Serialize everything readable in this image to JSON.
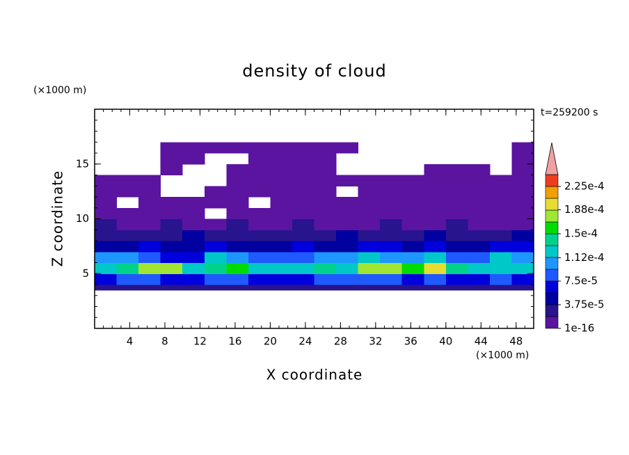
{
  "chart_data": {
    "type": "contour",
    "title": "density of cloud",
    "xlabel": "X coordinate",
    "ylabel": "Z coordinate",
    "x_unit": "(×1000 m)",
    "y_unit": "(×1000 m)",
    "annotation": "t=259200 s",
    "xlim": [
      0,
      50
    ],
    "ylim": [
      0,
      20
    ],
    "xticks": [
      4,
      8,
      12,
      16,
      20,
      24,
      28,
      32,
      36,
      40,
      44,
      48
    ],
    "yticks": [
      5,
      10,
      15
    ],
    "minor_tick_step": 1,
    "xbins": [
      0,
      2.5,
      5,
      7.5,
      10,
      12.5,
      15,
      17.5,
      20,
      22.5,
      25,
      27.5,
      30,
      32.5,
      35,
      37.5,
      40,
      42.5,
      45,
      47.5,
      50
    ],
    "zbins": [
      3.5,
      4,
      5,
      6,
      7,
      8,
      9,
      10,
      11,
      12,
      13,
      14,
      15,
      16,
      17
    ],
    "field": [
      [
        2.5e-05,
        2.5e-05,
        2.5e-05,
        2.5e-05,
        2.5e-05,
        2.5e-05,
        2.5e-05,
        2.5e-05,
        2.5e-05,
        2.5e-05,
        2.5e-05,
        2.5e-05,
        2.5e-05,
        2.5e-05,
        2.5e-05,
        2.5e-05,
        2.5e-05,
        2.5e-05,
        2.5e-05,
        2.5e-05
      ],
      [
        6e-05,
        8e-05,
        8e-05,
        6e-05,
        6e-05,
        8e-05,
        8e-05,
        6e-05,
        6e-05,
        6e-05,
        8e-05,
        8e-05,
        8e-05,
        8e-05,
        6e-05,
        8e-05,
        6e-05,
        6e-05,
        8e-05,
        6e-05
      ],
      [
        0.00012,
        0.00014,
        0.00018,
        0.00018,
        0.00012,
        0.00014,
        0.00016,
        0.00012,
        0.00012,
        0.00012,
        0.00014,
        0.00012,
        0.00018,
        0.00018,
        0.00016,
        0.00019,
        0.00014,
        0.00012,
        0.00012,
        0.00012
      ],
      [
        9.5e-05,
        9.5e-05,
        8e-05,
        6e-05,
        6e-05,
        0.00012,
        9.5e-05,
        8e-05,
        8e-05,
        8e-05,
        9.5e-05,
        9.5e-05,
        0.00012,
        9.5e-05,
        9.5e-05,
        0.00012,
        8e-05,
        8e-05,
        0.00012,
        9.5e-05
      ],
      [
        4.5e-05,
        4.5e-05,
        6e-05,
        4.5e-05,
        4.5e-05,
        6e-05,
        4.5e-05,
        4.5e-05,
        4.5e-05,
        6e-05,
        4.5e-05,
        4.5e-05,
        6e-05,
        6e-05,
        4.5e-05,
        6e-05,
        4.5e-05,
        4.5e-05,
        6e-05,
        6e-05
      ],
      [
        2.5e-05,
        2.5e-05,
        2.5e-05,
        2.5e-05,
        4.5e-05,
        2.5e-05,
        2.5e-05,
        2.5e-05,
        2.5e-05,
        2.5e-05,
        2.5e-05,
        4.5e-05,
        2.5e-05,
        2.5e-05,
        2.5e-05,
        4.5e-05,
        2.5e-05,
        2.5e-05,
        2.5e-05,
        4.5e-05
      ],
      [
        2.5e-05,
        1e-05,
        1e-05,
        2.5e-05,
        1e-05,
        1e-05,
        2.5e-05,
        1e-05,
        1e-05,
        2.5e-05,
        1e-05,
        1e-05,
        1e-05,
        2.5e-05,
        1e-05,
        1e-05,
        2.5e-05,
        1e-05,
        1e-05,
        1e-05
      ],
      [
        1e-05,
        1e-05,
        1e-05,
        1e-05,
        1e-05,
        null,
        1e-05,
        1e-05,
        1e-05,
        1e-05,
        1e-05,
        1e-05,
        1e-05,
        1e-05,
        1e-05,
        1e-05,
        1e-05,
        1e-05,
        1e-05,
        1e-05
      ],
      [
        1e-05,
        null,
        1e-05,
        1e-05,
        1e-05,
        1e-05,
        1e-05,
        null,
        1e-05,
        1e-05,
        1e-05,
        1e-05,
        1e-05,
        1e-05,
        1e-05,
        1e-05,
        1e-05,
        1e-05,
        1e-05,
        1e-05
      ],
      [
        1e-05,
        1e-05,
        1e-05,
        null,
        null,
        1e-05,
        1e-05,
        1e-05,
        1e-05,
        1e-05,
        1e-05,
        null,
        1e-05,
        1e-05,
        1e-05,
        1e-05,
        1e-05,
        1e-05,
        1e-05,
        1e-05
      ],
      [
        1e-05,
        1e-05,
        1e-05,
        null,
        null,
        null,
        1e-05,
        1e-05,
        1e-05,
        1e-05,
        1e-05,
        1e-05,
        1e-05,
        1e-05,
        1e-05,
        1e-05,
        1e-05,
        1e-05,
        1e-05,
        1e-05
      ],
      [
        null,
        null,
        null,
        1e-05,
        null,
        null,
        1e-05,
        1e-05,
        1e-05,
        1e-05,
        1e-05,
        null,
        null,
        null,
        null,
        1e-05,
        1e-05,
        1e-05,
        null,
        1e-05
      ],
      [
        null,
        null,
        null,
        1e-05,
        1e-05,
        null,
        null,
        1e-05,
        1e-05,
        1e-05,
        1e-05,
        null,
        null,
        null,
        null,
        null,
        null,
        null,
        null,
        1e-05
      ],
      [
        null,
        null,
        null,
        1e-05,
        1e-05,
        1e-05,
        1e-05,
        1e-05,
        1e-05,
        1e-05,
        1e-05,
        1e-05,
        null,
        null,
        null,
        null,
        null,
        null,
        null,
        1e-05
      ]
    ],
    "colorbar": {
      "clim": [
        1e-16,
        0.00024375
      ],
      "colors": [
        "#5a14a0",
        "#28148c",
        "#0000a0",
        "#0000dc",
        "#1e5aff",
        "#1e96ff",
        "#00c8c8",
        "#00d28c",
        "#00dc00",
        "#a0e632",
        "#e6dc32",
        "#f0a000",
        "#f03c1e"
      ],
      "extend_color": "#f0a0a0",
      "ticks": [
        {
          "value": 1e-16,
          "label": "1e-16"
        },
        {
          "value": 3.75e-05,
          "label": "3.75e-5"
        },
        {
          "value": 7.5e-05,
          "label": "7.5e-5"
        },
        {
          "value": 0.000112,
          "label": "1.12e-4"
        },
        {
          "value": 0.00015,
          "label": "1.5e-4"
        },
        {
          "value": 0.000188,
          "label": "1.88e-4"
        },
        {
          "value": 0.000225,
          "label": "2.25e-4"
        }
      ]
    }
  }
}
